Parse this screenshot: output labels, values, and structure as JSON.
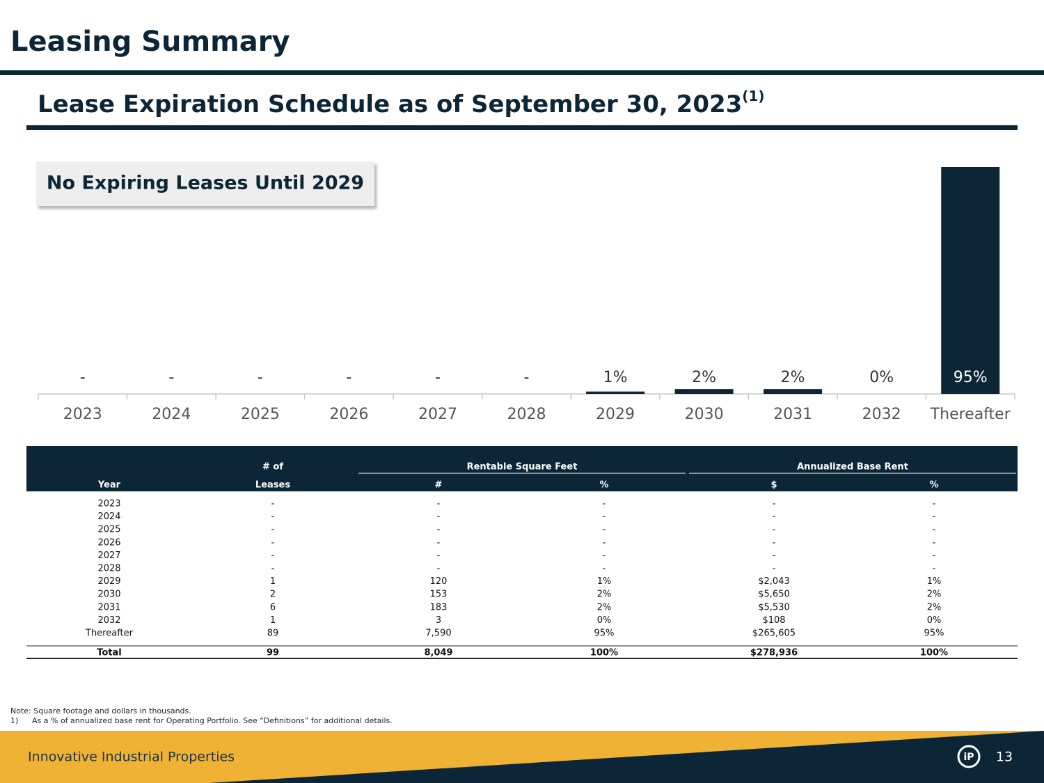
{
  "header": {
    "title": "Leasing Summary"
  },
  "chart_data": {
    "type": "bar",
    "title": "Lease Expiration Schedule as of September 30, 2023",
    "title_note": "(1)",
    "annotation": "No Expiring Leases Until 2029",
    "categories": [
      "2023",
      "2024",
      "2025",
      "2026",
      "2027",
      "2028",
      "2029",
      "2030",
      "2031",
      "2032",
      "Thereafter"
    ],
    "values": [
      0,
      0,
      0,
      0,
      0,
      0,
      1,
      2,
      2,
      0,
      95
    ],
    "value_labels": [
      "-",
      "-",
      "-",
      "-",
      "-",
      "-",
      "1%",
      "2%",
      "2%",
      "0%",
      "95%"
    ],
    "color": "#0c2637"
  },
  "table": {
    "group_headers": [
      "# of",
      "Rentable Square Feet",
      "Annualized Base Rent"
    ],
    "columns": [
      "Year",
      "Leases",
      "#",
      "%",
      "$",
      "%"
    ],
    "rows": [
      [
        "2023",
        "-",
        "-",
        "-",
        "-",
        "-"
      ],
      [
        "2024",
        "-",
        "-",
        "-",
        "-",
        "-"
      ],
      [
        "2025",
        "-",
        "-",
        "-",
        "-",
        "-"
      ],
      [
        "2026",
        "-",
        "-",
        "-",
        "-",
        "-"
      ],
      [
        "2027",
        "-",
        "-",
        "-",
        "-",
        "-"
      ],
      [
        "2028",
        "-",
        "-",
        "-",
        "-",
        "-"
      ],
      [
        "2029",
        "1",
        "120",
        "1%",
        "$2,043",
        "1%"
      ],
      [
        "2030",
        "2",
        "153",
        "2%",
        "$5,650",
        "2%"
      ],
      [
        "2031",
        "6",
        "183",
        "2%",
        "$5,530",
        "2%"
      ],
      [
        "2032",
        "1",
        "3",
        "0%",
        "$108",
        "0%"
      ],
      [
        "Thereafter",
        "89",
        "7,590",
        "95%",
        "$265,605",
        "95%"
      ]
    ],
    "total": [
      "Total",
      "99",
      "8,049",
      "100%",
      "$278,936",
      "100%"
    ]
  },
  "notes": [
    "Note: Square footage and dollars in thousands.",
    "1)",
    "As a % of annualized base rent for Operating Portfolio. See “Definitions” for additional details."
  ],
  "footer": {
    "company": "Innovative Industrial Properties",
    "page": "13"
  }
}
